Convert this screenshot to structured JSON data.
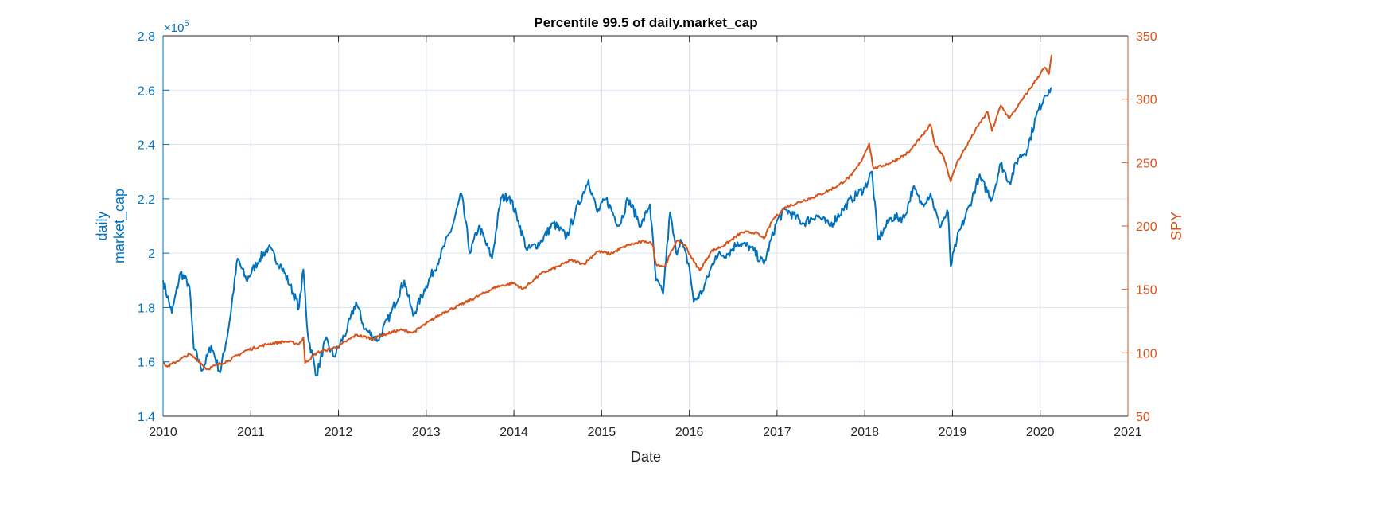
{
  "chart_data": {
    "type": "line",
    "title": "Percentile 99.5 of daily.market_cap",
    "xlabel": "Date",
    "ylabel_left": [
      "daily",
      "market_cap"
    ],
    "ylabel_right": "SPY",
    "left_exponent_base": "×10",
    "left_exponent_power": "5",
    "xlim": [
      2010,
      2021
    ],
    "ylim_left": [
      1.4,
      2.8
    ],
    "ylim_right": [
      50,
      350
    ],
    "xticks": [
      "2010",
      "2011",
      "2012",
      "2013",
      "2014",
      "2015",
      "2016",
      "2017",
      "2018",
      "2019",
      "2020",
      "2021"
    ],
    "yticks_left": [
      "1.4",
      "1.6",
      "1.8",
      "2",
      "2.2",
      "2.4",
      "2.6",
      "2.8"
    ],
    "yticks_right": [
      "50",
      "100",
      "150",
      "200",
      "250",
      "300",
      "350"
    ],
    "grid": true,
    "colors": {
      "left": "#0072BD",
      "right": "#D95319"
    },
    "series": [
      {
        "name": "daily market_cap (x1e5)",
        "axis": "left",
        "x": [
          2010.0,
          2010.1,
          2010.2,
          2010.3,
          2010.35,
          2010.45,
          2010.55,
          2010.65,
          2010.75,
          2010.85,
          2010.95,
          2011.1,
          2011.2,
          2011.35,
          2011.45,
          2011.55,
          2011.6,
          2011.65,
          2011.75,
          2011.85,
          2011.95,
          2012.1,
          2012.2,
          2012.3,
          2012.45,
          2012.6,
          2012.75,
          2012.85,
          2013.0,
          2013.15,
          2013.3,
          2013.4,
          2013.5,
          2013.6,
          2013.75,
          2013.85,
          2013.95,
          2014.05,
          2014.15,
          2014.3,
          2014.45,
          2014.6,
          2014.7,
          2014.85,
          2014.95,
          2015.05,
          2015.2,
          2015.3,
          2015.45,
          2015.55,
          2015.62,
          2015.7,
          2015.78,
          2015.85,
          2015.9,
          2016.0,
          2016.05,
          2016.15,
          2016.3,
          2016.45,
          2016.55,
          2016.7,
          2016.85,
          2017.0,
          2017.1,
          2017.3,
          2017.45,
          2017.6,
          2017.75,
          2017.85,
          2018.0,
          2018.08,
          2018.15,
          2018.3,
          2018.45,
          2018.55,
          2018.65,
          2018.75,
          2018.85,
          2018.95,
          2018.98,
          2019.05,
          2019.2,
          2019.3,
          2019.45,
          2019.55,
          2019.65,
          2019.75,
          2019.85,
          2019.95,
          2020.05,
          2020.1,
          2020.13
        ],
        "values": [
          1.9,
          1.78,
          1.93,
          1.88,
          1.65,
          1.57,
          1.66,
          1.56,
          1.73,
          1.98,
          1.9,
          1.98,
          2.02,
          1.95,
          1.88,
          1.8,
          1.94,
          1.7,
          1.55,
          1.68,
          1.62,
          1.72,
          1.82,
          1.72,
          1.68,
          1.78,
          1.9,
          1.77,
          1.88,
          1.98,
          2.1,
          2.22,
          2.0,
          2.1,
          1.98,
          2.2,
          2.21,
          2.12,
          2.01,
          2.04,
          2.11,
          2.06,
          2.15,
          2.27,
          2.15,
          2.2,
          2.1,
          2.2,
          2.1,
          2.18,
          1.9,
          1.85,
          2.15,
          2.0,
          2.05,
          1.95,
          1.82,
          1.86,
          1.99,
          2.0,
          2.04,
          2.02,
          1.96,
          2.12,
          2.16,
          2.11,
          2.14,
          2.1,
          2.16,
          2.2,
          2.24,
          2.3,
          2.05,
          2.13,
          2.13,
          2.24,
          2.18,
          2.22,
          2.1,
          2.15,
          1.95,
          2.05,
          2.18,
          2.28,
          2.2,
          2.33,
          2.26,
          2.35,
          2.38,
          2.5,
          2.58,
          2.6,
          2.61
        ]
      },
      {
        "name": "SPY",
        "axis": "right",
        "x": [
          2010.0,
          2010.05,
          2010.3,
          2010.4,
          2010.5,
          2010.6,
          2010.75,
          2010.95,
          2011.2,
          2011.4,
          2011.55,
          2011.6,
          2011.62,
          2011.75,
          2011.85,
          2012.0,
          2012.2,
          2012.4,
          2012.5,
          2012.7,
          2012.85,
          2013.0,
          2013.2,
          2013.4,
          2013.6,
          2013.8,
          2014.0,
          2014.1,
          2014.3,
          2014.5,
          2014.65,
          2014.8,
          2014.95,
          2015.1,
          2015.3,
          2015.5,
          2015.58,
          2015.62,
          2015.72,
          2015.85,
          2015.95,
          2016.05,
          2016.12,
          2016.25,
          2016.4,
          2016.6,
          2016.75,
          2016.85,
          2016.95,
          2017.1,
          2017.3,
          2017.5,
          2017.7,
          2017.85,
          2017.95,
          2018.05,
          2018.1,
          2018.3,
          2018.5,
          2018.7,
          2018.75,
          2018.8,
          2018.9,
          2018.98,
          2019.05,
          2019.3,
          2019.4,
          2019.45,
          2019.55,
          2019.65,
          2019.8,
          2019.95,
          2020.05,
          2020.1,
          2020.13
        ],
        "values": [
          92,
          89,
          99,
          94,
          87,
          90,
          94,
          102,
          107,
          109,
          107,
          112,
          92,
          100,
          102,
          105,
          114,
          111,
          114,
          118,
          116,
          123,
          132,
          138,
          145,
          152,
          155,
          150,
          162,
          168,
          173,
          170,
          180,
          178,
          185,
          188,
          186,
          170,
          168,
          188,
          185,
          172,
          165,
          180,
          185,
          195,
          195,
          190,
          205,
          215,
          220,
          225,
          232,
          240,
          250,
          265,
          245,
          250,
          258,
          275,
          280,
          264,
          255,
          235,
          250,
          280,
          290,
          275,
          295,
          285,
          300,
          315,
          325,
          320,
          335
        ]
      }
    ]
  }
}
